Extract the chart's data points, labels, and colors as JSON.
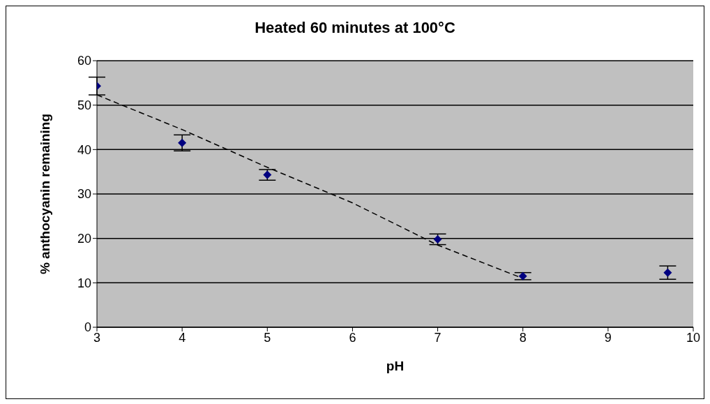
{
  "chart_data": {
    "type": "scatter",
    "title": "Heated 60 minutes at 100°C",
    "xlabel": "pH",
    "ylabel": "% anthocyanin remaining",
    "xlim": [
      3,
      10
    ],
    "xticks": [
      3,
      4,
      5,
      6,
      7,
      8,
      9,
      10
    ],
    "ylim": [
      0,
      60
    ],
    "yticks": [
      0,
      10,
      20,
      30,
      40,
      50,
      60
    ],
    "grid": "y",
    "legend": false,
    "marker": "diamond",
    "series": [
      {
        "color": "#000080",
        "x": [
          3,
          4,
          5,
          7,
          8,
          9.7
        ],
        "values": [
          54.3,
          41.5,
          34.3,
          19.8,
          11.5,
          12.3
        ],
        "errors": [
          2,
          1.8,
          1.2,
          1.2,
          0.8,
          1.5
        ]
      },
      {
        "type": "line",
        "color": "#000000",
        "line_style": "dashed",
        "marker": "none",
        "x": [
          3,
          4,
          5,
          6,
          7,
          8
        ],
        "values": [
          52.3,
          44.5,
          36,
          28,
          18.5,
          11
        ]
      }
    ]
  }
}
